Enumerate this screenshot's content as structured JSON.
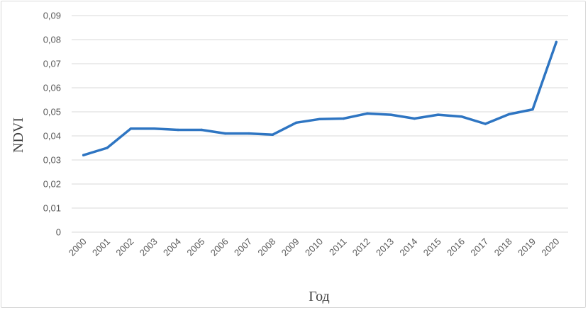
{
  "chart_data": {
    "type": "line",
    "title": "",
    "xlabel": "Год",
    "ylabel": "NDVI",
    "ylim": [
      0,
      0.09
    ],
    "yticks": [
      "0",
      "0,01",
      "0,02",
      "0,03",
      "0,04",
      "0,05",
      "0,06",
      "0,07",
      "0,08",
      "0,09"
    ],
    "categories": [
      "2000",
      "2001",
      "2002",
      "2003",
      "2004",
      "2005",
      "2006",
      "2007",
      "2008",
      "2009",
      "2010",
      "2011",
      "2012",
      "2013",
      "2014",
      "2015",
      "2016",
      "2017",
      "2018",
      "2019",
      "2020"
    ],
    "series": [
      {
        "color": "#2e75c2",
        "values": [
          0.032,
          0.035,
          0.043,
          0.043,
          0.0425,
          0.0425,
          0.041,
          0.041,
          0.0405,
          0.0455,
          0.047,
          0.0472,
          0.0493,
          0.0488,
          0.0472,
          0.0488,
          0.048,
          0.045,
          0.049,
          0.051,
          0.079
        ]
      }
    ],
    "grid": true,
    "legend": "none"
  }
}
